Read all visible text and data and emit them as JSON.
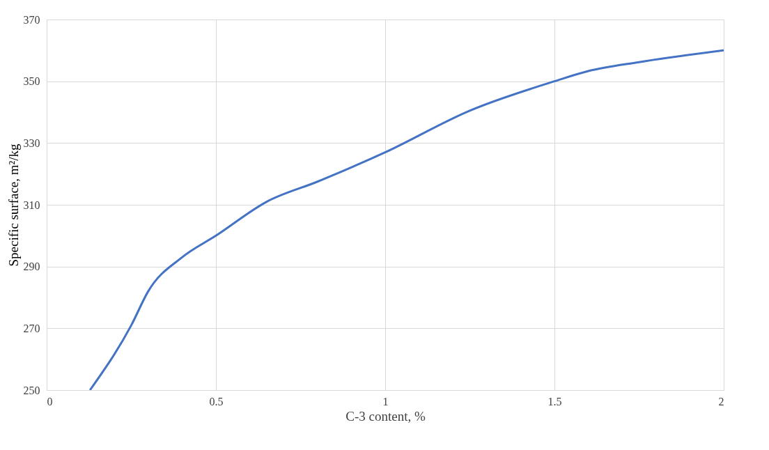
{
  "chart_data": {
    "type": "line",
    "xlabel": "C-3 content, %",
    "ylabel": "Specific surface, m²/kg",
    "x": [
      0.128,
      0.25,
      0.3,
      0.4,
      0.5,
      0.65,
      0.8,
      1.0,
      1.25,
      1.5,
      1.6,
      1.75,
      2.0
    ],
    "series": [
      {
        "color": "#4472c4",
        "values": [
          250,
          271,
          282,
          293,
          300,
          311,
          317.5,
          327,
          340.5,
          350,
          353.3,
          356.2,
          360
        ]
      }
    ],
    "xlim": [
      0,
      2
    ],
    "xticks": [
      0,
      0.5,
      1,
      1.5,
      2
    ],
    "ylim": [
      250,
      370
    ],
    "yticks": [
      250,
      270,
      290,
      310,
      330,
      350,
      370
    ],
    "grid": true,
    "marker": "none",
    "line_style": "solid"
  }
}
